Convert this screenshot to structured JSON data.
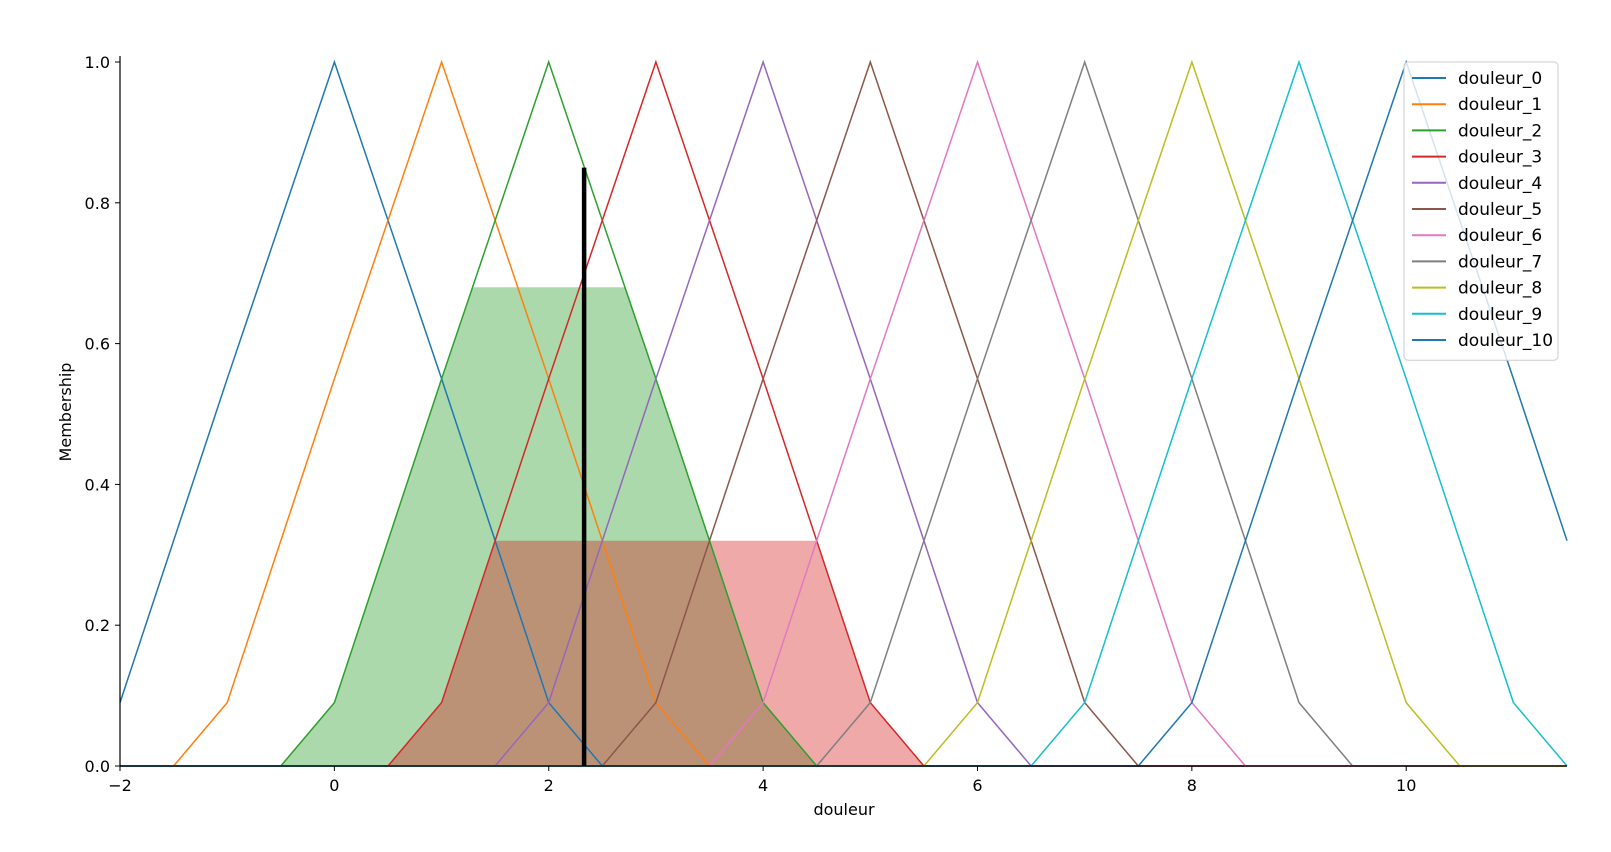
{
  "chart_data": {
    "type": "line",
    "title": "",
    "xlabel": "douleur",
    "ylabel": "Membership",
    "xlim": [
      -2,
      11.5
    ],
    "ylim": [
      0,
      1.0
    ],
    "x_ticks": [
      -2,
      0,
      2,
      4,
      6,
      8,
      10
    ],
    "y_ticks": [
      0.0,
      0.2,
      0.4,
      0.6,
      0.8,
      1.0
    ],
    "x_tick_labels": [
      "−2",
      "0",
      "2",
      "4",
      "6",
      "8",
      "10"
    ],
    "y_tick_labels": [
      "0.0",
      "0.2",
      "0.4",
      "0.6",
      "0.8",
      "1.0"
    ],
    "grid": false,
    "legend_position": "top-right",
    "series": [
      {
        "name": "douleur_0",
        "color": "#1f77b4",
        "x": [
          -2,
          -1,
          0,
          1,
          2,
          2.5,
          11.5
        ],
        "y": [
          0.09,
          0.55,
          1.0,
          0.55,
          0.09,
          0,
          0
        ]
      },
      {
        "name": "douleur_1",
        "color": "#ff7f0e",
        "x": [
          -2,
          -1.5,
          -1,
          0,
          1,
          2,
          3,
          3.5,
          11.5
        ],
        "y": [
          0,
          0,
          0.09,
          0.55,
          1.0,
          0.55,
          0.09,
          0,
          0
        ]
      },
      {
        "name": "douleur_2",
        "color": "#2ca02c",
        "x": [
          -2,
          -0.5,
          0,
          1,
          2,
          3,
          4,
          4.5,
          11.5
        ],
        "y": [
          0,
          0,
          0.09,
          0.55,
          1.0,
          0.55,
          0.09,
          0,
          0
        ]
      },
      {
        "name": "douleur_3",
        "color": "#d62728",
        "x": [
          -2,
          0.5,
          1,
          2,
          3,
          4,
          5,
          5.5,
          11.5
        ],
        "y": [
          0,
          0,
          0.09,
          0.55,
          1.0,
          0.55,
          0.09,
          0,
          0
        ]
      },
      {
        "name": "douleur_4",
        "color": "#9467bd",
        "x": [
          -2,
          1.5,
          2,
          3,
          4,
          5,
          6,
          6.5,
          11.5
        ],
        "y": [
          0,
          0,
          0.09,
          0.55,
          1.0,
          0.55,
          0.09,
          0,
          0
        ]
      },
      {
        "name": "douleur_5",
        "color": "#8c564b",
        "x": [
          -2,
          2.5,
          3,
          4,
          5,
          6,
          7,
          7.5,
          11.5
        ],
        "y": [
          0,
          0,
          0.09,
          0.55,
          1.0,
          0.55,
          0.09,
          0,
          0
        ]
      },
      {
        "name": "douleur_6",
        "color": "#e377c2",
        "x": [
          -2,
          3.5,
          4,
          5,
          6,
          7,
          8,
          8.5,
          11.5
        ],
        "y": [
          0,
          0,
          0.09,
          0.55,
          1.0,
          0.55,
          0.09,
          0,
          0
        ]
      },
      {
        "name": "douleur_7",
        "color": "#7f7f7f",
        "x": [
          -2,
          4.5,
          5,
          6,
          7,
          8,
          9,
          9.5,
          11.5
        ],
        "y": [
          0,
          0,
          0.09,
          0.55,
          1.0,
          0.55,
          0.09,
          0,
          0
        ]
      },
      {
        "name": "douleur_8",
        "color": "#bcbd22",
        "x": [
          -2,
          5.5,
          6,
          7,
          8,
          9,
          10,
          10.5,
          11.5
        ],
        "y": [
          0,
          0,
          0.09,
          0.55,
          1.0,
          0.55,
          0.09,
          0,
          0
        ]
      },
      {
        "name": "douleur_9",
        "color": "#17becf",
        "x": [
          -2,
          6.5,
          7,
          8,
          9,
          10,
          11,
          11.5
        ],
        "y": [
          0,
          0,
          0.09,
          0.55,
          1.0,
          0.55,
          0.09,
          0
        ]
      },
      {
        "name": "douleur_10",
        "color": "#1f77b4",
        "x": [
          -2,
          7.5,
          8,
          9,
          10,
          11,
          11.5
        ],
        "y": [
          0,
          0,
          0.09,
          0.55,
          1.0,
          0.55,
          0.32
        ]
      }
    ],
    "activations": [
      {
        "set": "douleur_2",
        "color": "#2ca02c",
        "opacity": 0.4,
        "level": 0.68
      },
      {
        "set": "douleur_3",
        "color": "#d62728",
        "opacity": 0.4,
        "level": 0.32
      }
    ],
    "crisp_output": {
      "x": 2.33,
      "y": 0.85,
      "color": "#000000"
    }
  }
}
